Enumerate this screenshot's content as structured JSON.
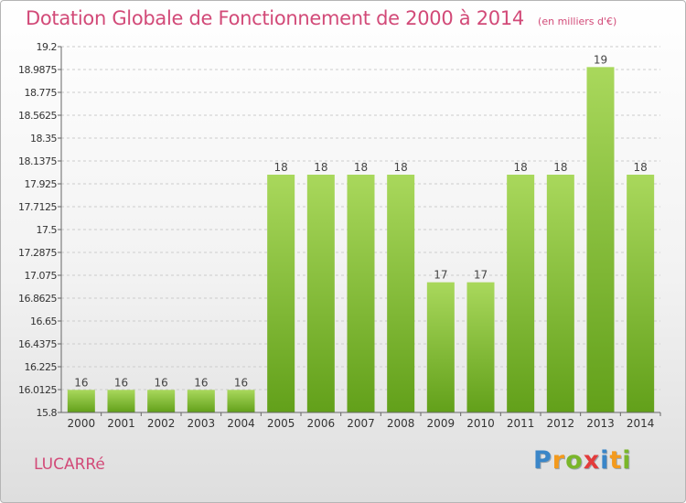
{
  "header": {
    "title": "Dotation Globale de Fonctionnement de 2000 à 2014",
    "unit": "(en milliers d'€)"
  },
  "footer": {
    "commune": "LUCARRé",
    "brand": "Proxiti",
    "brand_colors": [
      "#3a86c8",
      "#f39a1d",
      "#7ab62a",
      "#e33b3b",
      "#3a86c8",
      "#f39a1d",
      "#7ab62a"
    ]
  },
  "colors": {
    "title": "#d24a78",
    "bar_light": "#a9d85c",
    "bar_dark": "#62a01a",
    "grid": "#cccccc",
    "axis": "#666666"
  },
  "chart_data": {
    "type": "bar",
    "title": "Dotation Globale de Fonctionnement de 2000 à 2014",
    "subtitle": "(en milliers d'€)",
    "categories": [
      "2000",
      "2001",
      "2002",
      "2003",
      "2004",
      "2005",
      "2006",
      "2007",
      "2008",
      "2009",
      "2010",
      "2011",
      "2012",
      "2013",
      "2014"
    ],
    "values": [
      16.01,
      16.01,
      16.01,
      16.01,
      16.01,
      18.01,
      18.01,
      18.01,
      18.01,
      17.01,
      17.01,
      18.01,
      18.01,
      19.01,
      18.01
    ],
    "data_labels": [
      "16",
      "16",
      "16",
      "16",
      "16",
      "18",
      "18",
      "18",
      "18",
      "17",
      "17",
      "18",
      "18",
      "19",
      "18"
    ],
    "yticks": [
      "15.8",
      "16.0125",
      "16.225",
      "16.4375",
      "16.65",
      "16.8625",
      "17.075",
      "17.2875",
      "17.5",
      "17.7125",
      "17.925",
      "18.1375",
      "18.35",
      "18.5625",
      "18.775",
      "18.9875",
      "19.2"
    ],
    "ylim": [
      15.8,
      19.2
    ],
    "grid": true,
    "legend": "none"
  }
}
